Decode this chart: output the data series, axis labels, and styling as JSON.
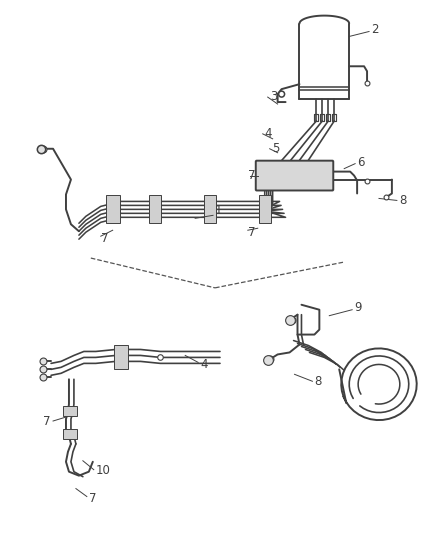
{
  "bg_color": "#ffffff",
  "line_color": "#404040",
  "lw_main": 1.4,
  "lw_thin": 0.9,
  "lw_thick": 2.0,
  "label_fs": 8.5,
  "fig_w": 4.38,
  "fig_h": 5.33,
  "dpi": 100
}
